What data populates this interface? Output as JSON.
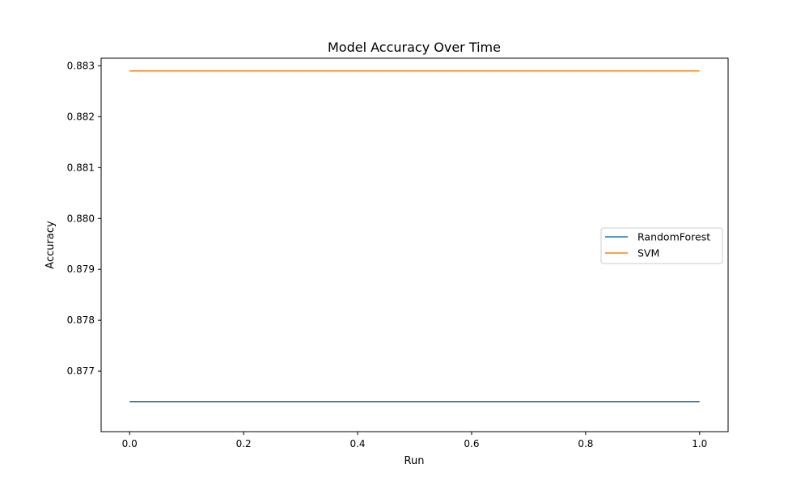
{
  "chart_data": {
    "type": "line",
    "title": "Model Accuracy Over Time",
    "xlabel": "Run",
    "ylabel": "Accuracy",
    "x": [
      0.0,
      1.0
    ],
    "xlim": [
      -0.05,
      1.05
    ],
    "ylim": [
      0.87581,
      0.88315
    ],
    "xticks": [
      0.0,
      0.2,
      0.4,
      0.6,
      0.8,
      1.0
    ],
    "xtick_labels": [
      "0.0",
      "0.2",
      "0.4",
      "0.6",
      "0.8",
      "1.0"
    ],
    "yticks": [
      0.877,
      0.878,
      0.879,
      0.88,
      0.881,
      0.882,
      0.883
    ],
    "ytick_labels": [
      "0.877",
      "0.878",
      "0.879",
      "0.880",
      "0.881",
      "0.882",
      "0.883"
    ],
    "grid": false,
    "legend_position": "center-right",
    "series": [
      {
        "name": "RandomForest",
        "color": "#1f77b4",
        "values": [
          0.8764,
          0.8764
        ]
      },
      {
        "name": "SVM",
        "color": "#ff7f0e",
        "values": [
          0.8829,
          0.8829
        ]
      }
    ]
  }
}
